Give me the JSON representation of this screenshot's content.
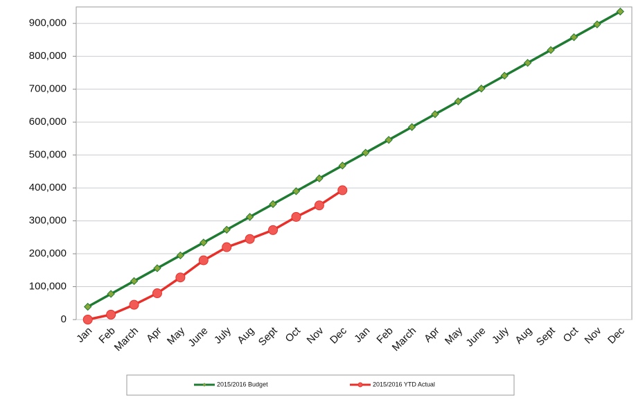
{
  "chart_data": {
    "type": "line",
    "categories": [
      "Jan",
      "Feb",
      "March",
      "Apr",
      "May",
      "June",
      "July",
      "Aug",
      "Sept",
      "Oct",
      "Nov",
      "Dec",
      "Jan",
      "Feb",
      "March",
      "Apr",
      "May",
      "June",
      "July",
      "Aug",
      "Sept",
      "Oct",
      "Nov",
      "Dec"
    ],
    "series": [
      {
        "name": "2015/2016 Budget",
        "color": "#1f7a32",
        "marker": "diamond",
        "marker_color": "#8aa83a",
        "values": [
          39000,
          78000,
          117000,
          156000,
          195000,
          234000,
          273000,
          312000,
          351000,
          390000,
          429000,
          468000,
          507000,
          546000,
          585000,
          624000,
          663000,
          702000,
          741000,
          780000,
          819000,
          858000,
          897000,
          936000
        ]
      },
      {
        "name": "2015/2016 YTD Actual",
        "color": "#e8302a",
        "marker": "circle",
        "marker_color": "#f25a55",
        "values": [
          0,
          15000,
          45000,
          80000,
          128000,
          180000,
          220000,
          245000,
          272000,
          312000,
          347000,
          393000,
          null,
          null,
          null,
          null,
          null,
          null,
          null,
          null,
          null,
          null,
          null,
          null
        ]
      }
    ],
    "ylim": [
      0,
      950000
    ],
    "yticks": [
      0,
      {
        "value": 100000,
        "label": "100,000"
      },
      {
        "value": 200000,
        "label": "200,000"
      },
      {
        "value": 300000,
        "label": "300,000"
      },
      {
        "value": 400000,
        "label": "400,000"
      },
      {
        "value": 500000,
        "label": "500,000"
      },
      {
        "value": 600000,
        "label": "600,000"
      },
      {
        "value": 700000,
        "label": "700,000"
      },
      {
        "value": 800000,
        "label": "800,000"
      },
      {
        "value": 900000,
        "label": "900,000"
      }
    ],
    "grid": true
  }
}
